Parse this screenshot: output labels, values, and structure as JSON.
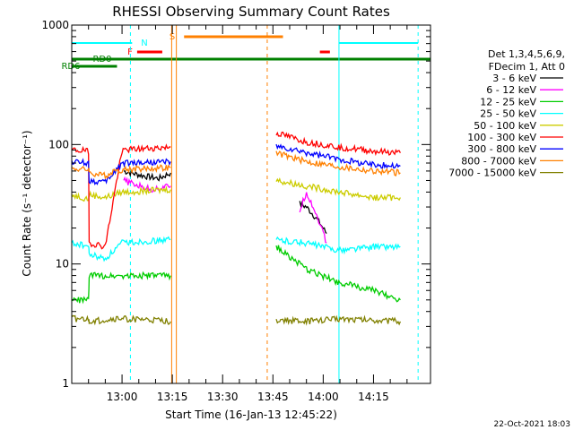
{
  "chart_data": {
    "type": "line",
    "title": "RHESSI Observing Summary Count Rates",
    "xlabel": "Start Time (16-Jan-13 12:45:22)",
    "ylabel": "Count Rate (s⁻¹ detector⁻¹)",
    "yscale": "log",
    "ylim": [
      1,
      1000
    ],
    "xlim_minutes_after_12_45": [
      0,
      107
    ],
    "x_ticks": [
      {
        "label": "13:00",
        "t": 15
      },
      {
        "label": "13:15",
        "t": 30
      },
      {
        "label": "13:30",
        "t": 45
      },
      {
        "label": "13:45",
        "t": 60
      },
      {
        "label": "14:00",
        "t": 75
      },
      {
        "label": "14:15",
        "t": 90
      }
    ],
    "y_ticks": [
      {
        "label": "1",
        "v": 1
      },
      {
        "label": "10",
        "v": 10
      },
      {
        "label": "100",
        "v": 100
      },
      {
        "label": "1000",
        "v": 1000
      }
    ],
    "legend_header": [
      "Det 1,3,4,5,6,9,",
      "FDecim 1, Att 0"
    ],
    "timestamp": "22-Oct-2021 18:03",
    "flag_labels": {
      "N": "N",
      "F": "F",
      "S": "S",
      "RD0": "RD0",
      "RD6": "RD6"
    },
    "series": [
      {
        "name": "3 - 6 keV",
        "color": "#000000",
        "segments": [
          {
            "t": [
              15.5,
              21,
              26,
              29.5
            ],
            "v": [
              60,
              55,
              52,
              58
            ]
          },
          {
            "t": [
              68,
              70,
              72,
              74,
              76
            ],
            "v": [
              32,
              30,
              26,
              22,
              18
            ]
          }
        ]
      },
      {
        "name": "6 - 12 keV",
        "color": "#ff00ff",
        "segments": [
          {
            "t": [
              15.5,
              20,
              24,
              29.5
            ],
            "v": [
              50,
              45,
              42,
              45
            ]
          },
          {
            "t": [
              68,
              70,
              72,
              74,
              76
            ],
            "v": [
              28,
              40,
              30,
              22,
              15
            ]
          }
        ]
      },
      {
        "name": "12 - 25 keV",
        "color": "#00cc00",
        "segments": [
          {
            "t": [
              0,
              5,
              5.2,
              10,
              15,
              29.5
            ],
            "v": [
              5,
              5,
              8,
              8,
              8,
              8
            ]
          },
          {
            "t": [
              61,
              70,
              80,
              90,
              98
            ],
            "v": [
              14,
              9,
              7,
              6,
              5
            ]
          }
        ]
      },
      {
        "name": "25 - 50 keV",
        "color": "#00ffff",
        "segments": [
          {
            "t": [
              0,
              5,
              5.2,
              10,
              15,
              29.5
            ],
            "v": [
              15,
              14,
              12,
              11,
              15,
              16
            ]
          },
          {
            "t": [
              61,
              70,
              80,
              90,
              98
            ],
            "v": [
              16,
              15,
              13,
              14,
              14
            ]
          }
        ]
      },
      {
        "name": "50 - 100 keV",
        "color": "#cccc00",
        "segments": [
          {
            "t": [
              0,
              5,
              5.2,
              10,
              15,
              29.5
            ],
            "v": [
              38,
              35,
              38,
              36,
              40,
              42
            ]
          },
          {
            "t": [
              61,
              70,
              80,
              90,
              98
            ],
            "v": [
              50,
              45,
              40,
              36,
              36
            ]
          }
        ]
      },
      {
        "name": "100 - 300 keV",
        "color": "#ff0000",
        "segments": [
          {
            "t": [
              0,
              5,
              5.2,
              10,
              15,
              29.5
            ],
            "v": [
              90,
              88,
              15,
              14,
              90,
              95
            ]
          },
          {
            "t": [
              61,
              70,
              80,
              90,
              98
            ],
            "v": [
              125,
              105,
              95,
              88,
              85
            ]
          }
        ]
      },
      {
        "name": "300 - 800 keV",
        "color": "#0000ff",
        "segments": [
          {
            "t": [
              0,
              5,
              5.2,
              10,
              15,
              29.5
            ],
            "v": [
              72,
              70,
              50,
              48,
              70,
              72
            ]
          },
          {
            "t": [
              61,
              70,
              80,
              90,
              98
            ],
            "v": [
              95,
              85,
              75,
              68,
              66
            ]
          }
        ]
      },
      {
        "name": "800 - 7000 keV",
        "color": "#ff8000",
        "segments": [
          {
            "t": [
              0,
              5,
              5.2,
              10,
              15,
              29.5
            ],
            "v": [
              63,
              62,
              58,
              55,
              62,
              64
            ]
          },
          {
            "t": [
              61,
              70,
              80,
              90,
              98
            ],
            "v": [
              85,
              72,
              65,
              60,
              58
            ]
          }
        ]
      },
      {
        "name": "7000 - 15000 keV",
        "color": "#808000",
        "segments": [
          {
            "t": [
              0,
              5,
              5.2,
              10,
              15,
              29.5
            ],
            "v": [
              3.5,
              3.4,
              3.3,
              3.4,
              3.5,
              3.3
            ]
          },
          {
            "t": [
              61,
              70,
              80,
              90,
              98
            ],
            "v": [
              3.4,
              3.3,
              3.5,
              3.4,
              3.3
            ]
          }
        ]
      }
    ]
  }
}
